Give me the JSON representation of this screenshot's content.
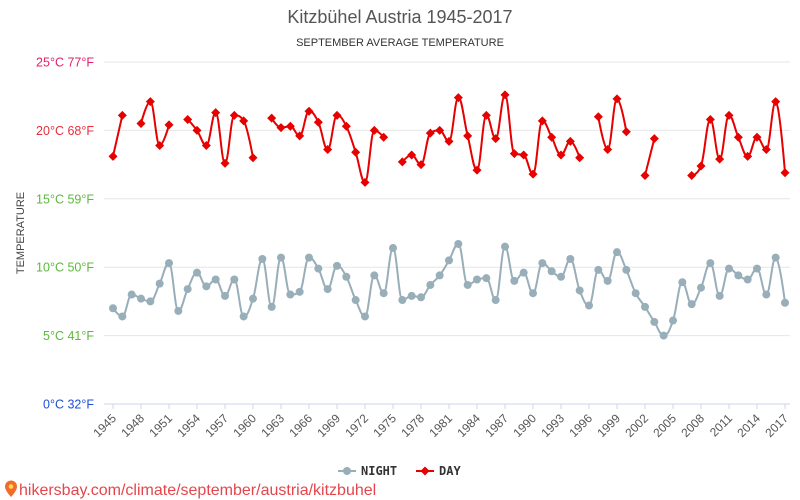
{
  "chart_data": {
    "type": "line",
    "title": "Kitzbühel Austria 1945-2017",
    "subtitle": "SEPTEMBER AVERAGE TEMPERATURE",
    "ylabel": "TEMPERATURE",
    "ylim": [
      0,
      25
    ],
    "xlim": [
      1945,
      2017
    ],
    "grid": true,
    "legend": "bottom-center",
    "y_ticks": [
      {
        "value": 25,
        "label": "25°C 77°F",
        "color": "#e3206b"
      },
      {
        "value": 20,
        "label": "20°C 68°F",
        "color": "#e8303f"
      },
      {
        "value": 15,
        "label": "15°C 59°F",
        "color": "#5cb83c"
      },
      {
        "value": 10,
        "label": "10°C 50°F",
        "color": "#5cb83c"
      },
      {
        "value": 5,
        "label": "5°C 41°F",
        "color": "#5cb83c"
      },
      {
        "value": 0,
        "label": "0°C 32°F",
        "color": "#1f4fd6"
      }
    ],
    "x_tick_labels": [
      "1945",
      "1948",
      "1951",
      "1954",
      "1957",
      "1960",
      "1963",
      "1966",
      "1969",
      "1972",
      "1975",
      "1978",
      "1981",
      "1984",
      "1987",
      "1990",
      "1993",
      "1996",
      "1999",
      "2002",
      "2005",
      "2008",
      "2011",
      "2014",
      "2017"
    ],
    "x": [
      1945,
      1946,
      1947,
      1948,
      1949,
      1950,
      1951,
      1952,
      1953,
      1954,
      1955,
      1956,
      1957,
      1958,
      1959,
      1960,
      1961,
      1962,
      1963,
      1964,
      1965,
      1966,
      1967,
      1968,
      1969,
      1970,
      1971,
      1972,
      1973,
      1974,
      1975,
      1976,
      1977,
      1978,
      1979,
      1980,
      1981,
      1982,
      1983,
      1984,
      1985,
      1986,
      1987,
      1988,
      1989,
      1990,
      1991,
      1992,
      1993,
      1994,
      1995,
      1996,
      1997,
      1998,
      1999,
      2000,
      2001,
      2002,
      2003,
      2004,
      2005,
      2006,
      2007,
      2008,
      2009,
      2010,
      2011,
      2012,
      2013,
      2014,
      2015,
      2016,
      2017
    ],
    "series": [
      {
        "name": "NIGHT",
        "color": "#98aeb8",
        "marker": "circle",
        "values": [
          7.0,
          6.4,
          8.0,
          7.7,
          7.5,
          8.8,
          10.3,
          6.8,
          8.4,
          9.6,
          8.6,
          9.1,
          7.9,
          9.1,
          6.4,
          7.7,
          10.6,
          7.1,
          10.7,
          8.0,
          8.2,
          10.7,
          9.9,
          8.4,
          10.1,
          9.3,
          7.6,
          6.4,
          9.4,
          8.1,
          11.4,
          7.6,
          7.9,
          7.8,
          8.7,
          9.4,
          10.5,
          11.7,
          8.7,
          9.1,
          9.2,
          7.6,
          11.5,
          9.0,
          9.6,
          8.1,
          10.3,
          9.7,
          9.3,
          10.6,
          8.3,
          7.2,
          9.8,
          9.0,
          11.1,
          9.8,
          8.1,
          7.1,
          6.0,
          5.0,
          6.1,
          8.9,
          7.3,
          8.5,
          10.3,
          7.9,
          9.9,
          9.4,
          9.1,
          9.9,
          8.0,
          10.7,
          7.4
        ]
      },
      {
        "name": "DAY",
        "color": "#e60000",
        "marker": "diamond",
        "values": [
          18.1,
          21.1,
          null,
          20.5,
          22.1,
          18.9,
          20.4,
          null,
          20.8,
          20.0,
          18.9,
          21.3,
          17.6,
          21.1,
          20.7,
          18.0,
          null,
          20.9,
          20.2,
          20.3,
          19.6,
          21.4,
          20.6,
          18.6,
          21.1,
          20.3,
          18.4,
          16.2,
          20.0,
          19.5,
          null,
          17.7,
          18.2,
          17.5,
          19.8,
          20.0,
          19.2,
          22.4,
          19.6,
          17.1,
          21.1,
          19.4,
          22.6,
          18.3,
          18.2,
          16.8,
          20.7,
          19.5,
          18.2,
          19.2,
          18.0,
          null,
          21.0,
          18.6,
          22.3,
          19.9,
          null,
          16.7,
          19.4,
          null,
          null,
          null,
          16.7,
          17.4,
          20.8,
          17.9,
          21.1,
          19.5,
          18.1,
          19.5,
          18.6,
          22.1,
          16.9
        ]
      }
    ]
  },
  "watermark": {
    "text": "hikersbay.com/climate/september/austria/kitzbuhel",
    "color": "#e4464c",
    "icon": "map-pin-icon"
  }
}
